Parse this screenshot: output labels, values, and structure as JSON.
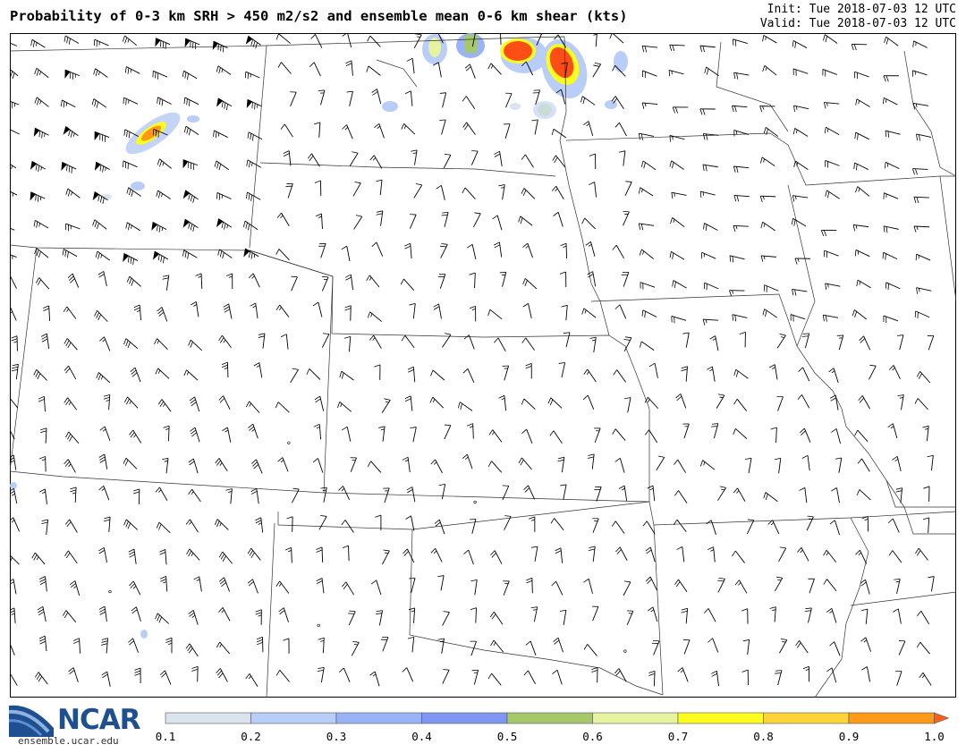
{
  "title": "Probability of 0-3 km SRH > 450 m2/s2 and ensemble mean 0-6 km shear (kts)",
  "init_label": "Init: Tue 2018-07-03 12 UTC",
  "valid_label": "Valid: Tue 2018-07-03 12 UTC",
  "logo": {
    "name": "NCAR",
    "url": "ensemble.ucar.edu",
    "color": "#1d4f91"
  },
  "colorbar": {
    "ticks": [
      "0.1",
      "0.2",
      "0.3",
      "0.4",
      "0.5",
      "0.6",
      "0.7",
      "0.8",
      "0.9",
      "1.0"
    ],
    "colors": [
      "#dbe3ee",
      "#b8cdf7",
      "#99b3f6",
      "#7f96f4",
      "#a5c96a",
      "#e6f3a0",
      "#fdfc1f",
      "#fed33a",
      "#fe9a17"
    ],
    "arrow_color": "#fe5f1d"
  },
  "map": {
    "description_type": "probability shading with wind barbs",
    "probability_colors": {
      "low": "#b8cdf7",
      "mid": "#a5c96a",
      "high": "#fed33a",
      "max": "#fd4e16"
    }
  }
}
